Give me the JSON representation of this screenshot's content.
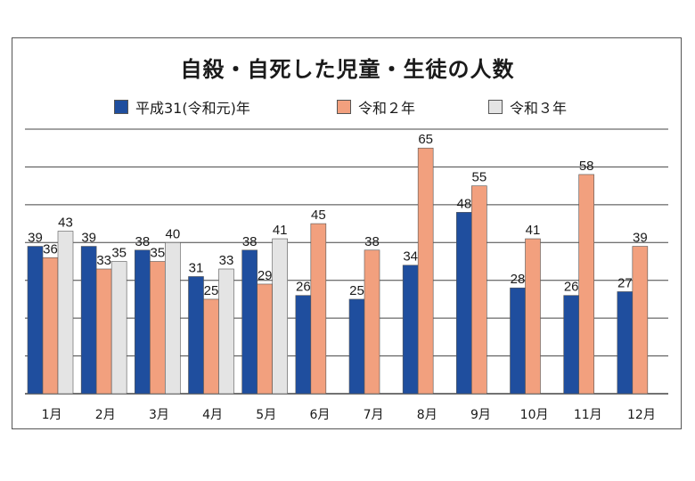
{
  "title": "自殺・自死した児童・生徒の人数",
  "legend": [
    "平成31(令和元)年",
    "令和２年",
    "令和３年"
  ],
  "colors": {
    "s0": "#1f4e9e",
    "s1": "#f2a07e",
    "s2": "#e4e4e4",
    "grid": "#444444"
  },
  "chart_data": {
    "type": "bar",
    "title": "自殺・自死した児童・生徒の人数",
    "categories": [
      "1月",
      "2月",
      "3月",
      "4月",
      "5月",
      "6月",
      "7月",
      "8月",
      "9月",
      "10月",
      "11月",
      "12月"
    ],
    "series": [
      {
        "name": "平成31(令和元)年",
        "values": [
          39,
          39,
          38,
          31,
          38,
          26,
          25,
          34,
          48,
          28,
          26,
          27
        ]
      },
      {
        "name": "令和２年",
        "values": [
          36,
          33,
          35,
          25,
          29,
          45,
          38,
          65,
          55,
          41,
          58,
          39
        ]
      },
      {
        "name": "令和３年",
        "values": [
          43,
          35,
          40,
          33,
          41,
          null,
          null,
          null,
          null,
          null,
          null,
          null
        ]
      }
    ],
    "ylim": [
      0,
      70
    ],
    "grid": true,
    "legend_position": "top"
  }
}
